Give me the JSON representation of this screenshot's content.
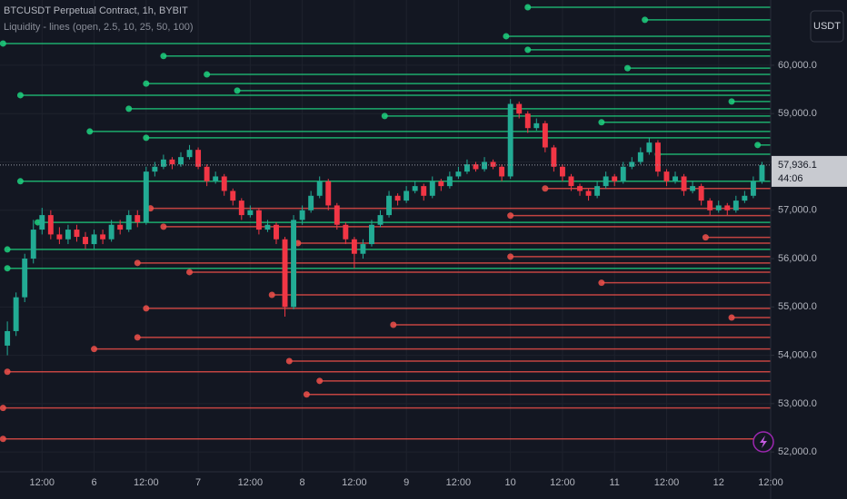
{
  "chart_data": {
    "type": "candlestick",
    "title": "BTCUSDT Perpetual Contract, 1h, BYBIT",
    "subtitle": "Liquidity - lines (open, 2.5, 10, 25, 50, 100)",
    "currency": "USDT",
    "up_color": "#22ab94",
    "down_color": "#f23645",
    "short_color": "#1fd17f",
    "long_color": "#f0504a",
    "grid": true,
    "xlim": [
      2.3,
      180
    ],
    "ylim": [
      51590,
      61350
    ],
    "xticks": [
      {
        "value": 12,
        "label": "12:00"
      },
      {
        "value": 24,
        "label": "6"
      },
      {
        "value": 36,
        "label": "12:00"
      },
      {
        "value": 48,
        "label": "7"
      },
      {
        "value": 60,
        "label": "12:00"
      },
      {
        "value": 72,
        "label": "8"
      },
      {
        "value": 84,
        "label": "12:00"
      },
      {
        "value": 96,
        "label": "9"
      },
      {
        "value": 108,
        "label": "12:00"
      },
      {
        "value": 120,
        "label": "10"
      },
      {
        "value": 132,
        "label": "12:00"
      },
      {
        "value": 144,
        "label": "11"
      },
      {
        "value": 156,
        "label": "12:00"
      },
      {
        "value": 168,
        "label": "12"
      },
      {
        "value": 180,
        "label": "12:00"
      }
    ],
    "yticks": [
      {
        "value": 52000,
        "label": "52,000.0"
      },
      {
        "value": 53000,
        "label": "53,000.0"
      },
      {
        "value": 54000,
        "label": "54,000.0"
      },
      {
        "value": 55000,
        "label": "55,000.0"
      },
      {
        "value": 56000,
        "label": "56,000.0"
      },
      {
        "value": 57000,
        "label": "57,000.0"
      },
      {
        "value": 58000,
        "label": "58,000.0"
      },
      {
        "value": 59000,
        "label": "59,000.0"
      },
      {
        "value": 60000,
        "label": "60,000.0"
      }
    ],
    "last_price": {
      "value": 57936.1,
      "label": "57,936.1"
    },
    "countdown": "44:06",
    "x": [
      4,
      6,
      8,
      10,
      12,
      14,
      16,
      18,
      20,
      22,
      24,
      26,
      28,
      30,
      32,
      34,
      36,
      38,
      40,
      42,
      44,
      46,
      48,
      50,
      52,
      54,
      56,
      58,
      60,
      62,
      64,
      66,
      68,
      70,
      72,
      74,
      76,
      78,
      80,
      82,
      84,
      86,
      88,
      90,
      92,
      94,
      96,
      98,
      100,
      102,
      104,
      106,
      108,
      110,
      112,
      114,
      116,
      118,
      120,
      122,
      124,
      126,
      128,
      130,
      132,
      134,
      136,
      138,
      140,
      142,
      144,
      146,
      148,
      150,
      152,
      154,
      156,
      158,
      160,
      162,
      164,
      166,
      168,
      170,
      172,
      174,
      176,
      178
    ],
    "ohlc": [
      [
        54200,
        54700,
        54000,
        54500
      ],
      [
        54500,
        55300,
        54400,
        55200
      ],
      [
        55200,
        56100,
        55100,
        56000
      ],
      [
        56000,
        56800,
        55900,
        56600
      ],
      [
        56600,
        57050,
        56500,
        56900
      ],
      [
        56900,
        57000,
        56400,
        56500
      ],
      [
        56500,
        56650,
        56300,
        56400
      ],
      [
        56400,
        56700,
        56300,
        56600
      ],
      [
        56600,
        56700,
        56350,
        56450
      ],
      [
        56450,
        56550,
        56200,
        56300
      ],
      [
        56300,
        56600,
        56200,
        56500
      ],
      [
        56500,
        56600,
        56300,
        56400
      ],
      [
        56400,
        56800,
        56350,
        56700
      ],
      [
        56700,
        56800,
        56500,
        56600
      ],
      [
        56600,
        57000,
        56550,
        56900
      ],
      [
        56900,
        57000,
        56650,
        56750
      ],
      [
        56750,
        57900,
        56700,
        57800
      ],
      [
        57800,
        58000,
        57700,
        57900
      ],
      [
        57900,
        58150,
        57850,
        58050
      ],
      [
        58050,
        58100,
        57850,
        57950
      ],
      [
        57950,
        58200,
        57900,
        58100
      ],
      [
        58100,
        58350,
        58050,
        58250
      ],
      [
        58250,
        58300,
        57850,
        57900
      ],
      [
        57900,
        57950,
        57500,
        57600
      ],
      [
        57600,
        57800,
        57550,
        57700
      ],
      [
        57700,
        57750,
        57300,
        57400
      ],
      [
        57400,
        57450,
        57100,
        57200
      ],
      [
        57200,
        57250,
        56800,
        56900
      ],
      [
        56900,
        57100,
        56850,
        57000
      ],
      [
        57000,
        57050,
        56500,
        56600
      ],
      [
        56600,
        56800,
        56550,
        56700
      ],
      [
        56700,
        56750,
        56300,
        56400
      ],
      [
        56400,
        56450,
        54800,
        55000
      ],
      [
        55000,
        56900,
        54950,
        56800
      ],
      [
        56800,
        57100,
        56700,
        57000
      ],
      [
        57000,
        57400,
        56950,
        57300
      ],
      [
        57300,
        57700,
        57250,
        57600
      ],
      [
        57600,
        57650,
        57000,
        57100
      ],
      [
        57100,
        57150,
        56600,
        56700
      ],
      [
        56700,
        56750,
        56300,
        56400
      ],
      [
        56400,
        56450,
        55800,
        56100
      ],
      [
        56100,
        56400,
        56000,
        56300
      ],
      [
        56300,
        56800,
        56250,
        56700
      ],
      [
        56700,
        57000,
        56650,
        56900
      ],
      [
        56900,
        57400,
        56850,
        57300
      ],
      [
        57300,
        57350,
        57100,
        57200
      ],
      [
        57200,
        57500,
        57150,
        57400
      ],
      [
        57400,
        57600,
        57350,
        57500
      ],
      [
        57500,
        57550,
        57200,
        57300
      ],
      [
        57300,
        57700,
        57250,
        57600
      ],
      [
        57600,
        57650,
        57400,
        57500
      ],
      [
        57500,
        57800,
        57450,
        57700
      ],
      [
        57700,
        57900,
        57650,
        57800
      ],
      [
        57800,
        58050,
        57750,
        57950
      ],
      [
        57950,
        58000,
        57800,
        57850
      ],
      [
        57850,
        58100,
        57800,
        58000
      ],
      [
        58000,
        58050,
        57850,
        57900
      ],
      [
        57900,
        57950,
        57600,
        57700
      ],
      [
        57700,
        59300,
        57650,
        59200
      ],
      [
        59200,
        59250,
        58900,
        59000
      ],
      [
        59000,
        59050,
        58600,
        58700
      ],
      [
        58700,
        58900,
        58650,
        58800
      ],
      [
        58800,
        58850,
        58200,
        58300
      ],
      [
        58300,
        58350,
        57800,
        57900
      ],
      [
        57900,
        57950,
        57600,
        57700
      ],
      [
        57700,
        57750,
        57400,
        57500
      ],
      [
        57500,
        57550,
        57300,
        57400
      ],
      [
        57400,
        57450,
        57200,
        57300
      ],
      [
        57300,
        57600,
        57250,
        57500
      ],
      [
        57500,
        57800,
        57450,
        57700
      ],
      [
        57700,
        57750,
        57500,
        57600
      ],
      [
        57600,
        58000,
        57550,
        57900
      ],
      [
        57900,
        58100,
        57850,
        58000
      ],
      [
        58000,
        58300,
        57950,
        58200
      ],
      [
        58200,
        58500,
        58150,
        58400
      ],
      [
        58400,
        58450,
        57700,
        57800
      ],
      [
        57800,
        57850,
        57500,
        57600
      ],
      [
        57600,
        57800,
        57550,
        57700
      ],
      [
        57700,
        57750,
        57300,
        57400
      ],
      [
        57400,
        57600,
        57350,
        57500
      ],
      [
        57500,
        57550,
        57100,
        57200
      ],
      [
        57200,
        57250,
        56900,
        57000
      ],
      [
        57000,
        57200,
        56950,
        57100
      ],
      [
        57100,
        57150,
        56900,
        57000
      ],
      [
        57000,
        57300,
        56950,
        57200
      ],
      [
        57200,
        57400,
        57150,
        57300
      ],
      [
        57300,
        57700,
        57250,
        57600
      ],
      [
        57600,
        58000,
        57550,
        57936.1
      ]
    ],
    "liquidity": {
      "shorts": [
        {
          "price": 61200,
          "x": 124
        },
        {
          "price": 60940,
          "x": 151
        },
        {
          "price": 60600,
          "x": 119
        },
        {
          "price": 60450,
          "x": 3
        },
        {
          "price": 60320,
          "x": 124
        },
        {
          "price": 60190,
          "x": 40
        },
        {
          "price": 59940,
          "x": 147
        },
        {
          "price": 59810,
          "x": 50
        },
        {
          "price": 59620,
          "x": 36
        },
        {
          "price": 59475,
          "x": 57
        },
        {
          "price": 59380,
          "x": 7
        },
        {
          "price": 59250,
          "x": 171
        },
        {
          "price": 59100,
          "x": 32
        },
        {
          "price": 58950,
          "x": 91
        },
        {
          "price": 58820,
          "x": 141
        },
        {
          "price": 58630,
          "x": 23
        },
        {
          "price": 58500,
          "x": 36
        },
        {
          "price": 58350,
          "x": 177
        },
        {
          "price": 58160,
          "x": 154
        },
        {
          "price": 57600,
          "x": 7
        },
        {
          "price": 56750,
          "x": 11
        },
        {
          "price": 56190,
          "x": 4
        },
        {
          "price": 55800,
          "x": 4
        }
      ],
      "longs": [
        {
          "price": 57450,
          "x": 128
        },
        {
          "price": 57040,
          "x": 37
        },
        {
          "price": 56890,
          "x": 120
        },
        {
          "price": 56660,
          "x": 40
        },
        {
          "price": 56440,
          "x": 165
        },
        {
          "price": 56320,
          "x": 71
        },
        {
          "price": 56040,
          "x": 120
        },
        {
          "price": 55910,
          "x": 34
        },
        {
          "price": 55720,
          "x": 46
        },
        {
          "price": 55500,
          "x": 141
        },
        {
          "price": 55250,
          "x": 65
        },
        {
          "price": 54970,
          "x": 36
        },
        {
          "price": 54780,
          "x": 171
        },
        {
          "price": 54630,
          "x": 93
        },
        {
          "price": 54370,
          "x": 34
        },
        {
          "price": 54130,
          "x": 24
        },
        {
          "price": 53880,
          "x": 69
        },
        {
          "price": 53660,
          "x": 4
        },
        {
          "price": 53470,
          "x": 76
        },
        {
          "price": 53190,
          "x": 73
        },
        {
          "price": 52910,
          "x": 3
        },
        {
          "price": 52270,
          "x": 3
        }
      ]
    }
  }
}
